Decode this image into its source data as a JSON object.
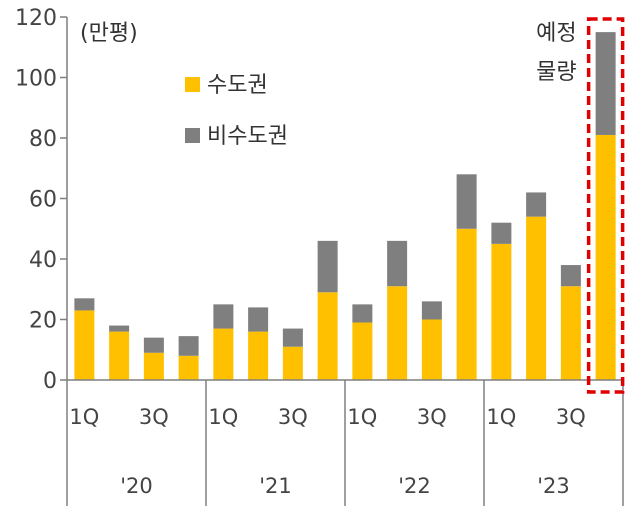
{
  "chart_data": {
    "type": "bar",
    "stacked": true,
    "unit_label": "(만평)",
    "ylim": [
      0,
      120
    ],
    "yticks": [
      "0",
      "20",
      "40",
      "60",
      "80",
      "100",
      "120"
    ],
    "grid": false,
    "legend_position": "top-left inside plot",
    "x_quarter_labels": [
      "1Q",
      "3Q",
      "1Q",
      "3Q",
      "1Q",
      "3Q",
      "1Q",
      "3Q"
    ],
    "x_year_labels": [
      "'20",
      "'21",
      "'22",
      "'23"
    ],
    "series": [
      {
        "name": "수도권",
        "color": "#FFC000",
        "values": [
          23,
          16,
          9,
          8,
          17,
          16,
          11,
          29,
          19,
          31,
          20,
          50,
          45,
          54,
          31,
          81
        ]
      },
      {
        "name": "비수도권",
        "color": "#7F7F7F",
        "values": [
          4,
          2,
          5,
          6.5,
          8,
          8,
          6,
          17,
          6,
          15,
          6,
          18,
          7,
          8,
          7,
          34
        ]
      }
    ],
    "highlight": {
      "bar_index": 15,
      "label_lines": [
        "예정",
        "물량"
      ],
      "border_color": "#E00000"
    }
  }
}
